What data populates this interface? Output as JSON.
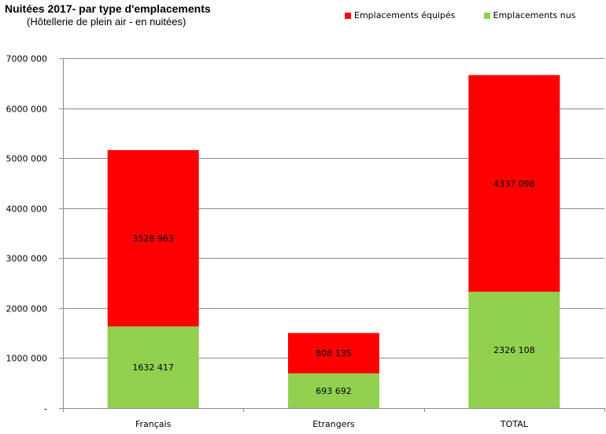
{
  "chart_data": {
    "type": "bar",
    "stacked": true,
    "title": "Nuitées 2017- par type d'emplacements",
    "subtitle": "(Hôtellerie de plein air - en nuitées)",
    "categories": [
      "Français",
      "Etrangers",
      "TOTAL"
    ],
    "series": [
      {
        "name": "Emplacements nus",
        "color": "#92d050",
        "values": [
          1632417,
          693692,
          2326108
        ],
        "labels": [
          "1632 417",
          "693 692",
          "2326 108"
        ]
      },
      {
        "name": "Emplacements équipés",
        "color": "#ff0000",
        "values": [
          3528963,
          808135,
          4337098
        ],
        "labels": [
          "3528 963",
          "808 135",
          "4337 098"
        ]
      }
    ],
    "legend_order": [
      "Emplacements équipés",
      "Emplacements nus"
    ],
    "ylim": [
      0,
      7000000
    ],
    "yticks": [
      0,
      1000000,
      2000000,
      3000000,
      4000000,
      5000000,
      6000000,
      7000000
    ],
    "ytick_labels": [
      "-",
      "1000 000",
      "2000 000",
      "3000 000",
      "4000 000",
      "5000 000",
      "6000 000",
      "7000 000"
    ],
    "grid": true,
    "legend_position": "top-right"
  }
}
